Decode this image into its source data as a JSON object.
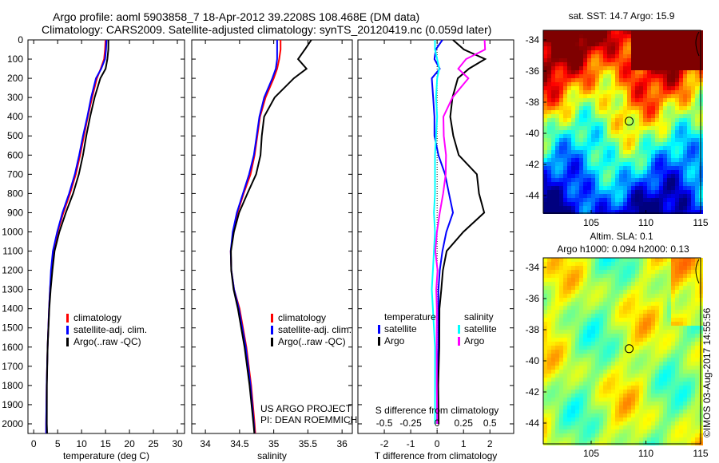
{
  "title_line1": "Argo profile: aoml 5903858_7 18-Apr-2012 39.2208S 108.468E (DM data)",
  "title_line2": "Climatology: CARS2009. Satellite-adjusted climatology: synTS_20120419.nc (0.059d later)",
  "colors": {
    "climatology": "#ff0000",
    "satellite": "#0000ff",
    "argo": "#000000",
    "sal_satellite": "#00ffff",
    "sal_argo": "#ff00ff"
  },
  "chart_data": [
    {
      "type": "line",
      "xlabel": "temperature (deg C)",
      "ylabel": "",
      "xlim": [
        -1.2,
        31.5
      ],
      "ylim": [
        2050,
        0
      ],
      "xticks": [
        "0",
        "5",
        "10",
        "15",
        "20",
        "25",
        "30"
      ],
      "yticks": [
        "0",
        "100",
        "200",
        "300",
        "400",
        "500",
        "600",
        "700",
        "800",
        "900",
        "1000",
        "1100",
        "1200",
        "1300",
        "1400",
        "1500",
        "1600",
        "1700",
        "1800",
        "1900",
        "2000"
      ],
      "legend": [
        "climatology",
        "satellite-adj. clim.",
        "Argo(..raw -QC)"
      ],
      "depth": [
        0,
        50,
        100,
        150,
        200,
        300,
        400,
        500,
        600,
        700,
        800,
        900,
        1000,
        1100,
        1200,
        1300,
        1400,
        1600,
        1800,
        2000,
        2050
      ],
      "series": [
        {
          "name": "climatology",
          "values": [
            15.0,
            14.9,
            14.7,
            14.0,
            13.2,
            12.2,
            11.3,
            10.5,
            9.7,
            8.8,
            7.6,
            6.2,
            5.0,
            4.1,
            3.7,
            3.4,
            3.2,
            2.9,
            2.7,
            2.6,
            2.6
          ]
        },
        {
          "name": "satellite-adj. clim.",
          "values": [
            15.2,
            15.1,
            14.9,
            14.1,
            13.0,
            12.0,
            11.2,
            10.3,
            9.5,
            8.6,
            7.4,
            6.0,
            4.9,
            4.0,
            3.6,
            3.4,
            3.2,
            2.9,
            2.7,
            2.6,
            2.6
          ]
        },
        {
          "name": "Argo(..raw -QC)",
          "values": [
            15.6,
            15.5,
            15.3,
            15.0,
            14.0,
            12.8,
            11.8,
            10.9,
            10.2,
            9.4,
            8.3,
            6.8,
            5.4,
            4.3,
            3.8,
            3.5,
            3.3,
            3.0,
            2.8,
            2.7,
            2.7
          ]
        }
      ]
    },
    {
      "type": "line",
      "xlabel": "salinity",
      "xlim": [
        33.8,
        36.15
      ],
      "ylim": [
        2050,
        0
      ],
      "xticks": [
        "34",
        "34.5",
        "35",
        "35.5",
        "36"
      ],
      "legend": [
        "climatology",
        "satellite-adj. clim.",
        "Argo(..raw -QC)"
      ],
      "annotation": [
        "US ARGO PROJECT",
        "PI: DEAN ROEMMICH"
      ],
      "depth": [
        0,
        50,
        100,
        150,
        200,
        300,
        400,
        500,
        600,
        700,
        800,
        900,
        1000,
        1100,
        1200,
        1300,
        1400,
        1600,
        1800,
        2000,
        2050
      ],
      "series": [
        {
          "name": "climatology",
          "values": [
            35.1,
            35.1,
            35.08,
            35.05,
            35.0,
            34.88,
            34.8,
            34.76,
            34.72,
            34.66,
            34.56,
            34.47,
            34.41,
            34.37,
            34.38,
            34.42,
            34.5,
            34.6,
            34.67,
            34.72,
            34.73
          ]
        },
        {
          "name": "satellite-adj. clim.",
          "values": [
            35.05,
            35.05,
            35.05,
            35.03,
            34.98,
            34.86,
            34.79,
            34.75,
            34.71,
            34.64,
            34.55,
            34.46,
            34.4,
            34.37,
            34.38,
            34.42,
            34.49,
            34.59,
            34.66,
            34.71,
            34.72
          ]
        },
        {
          "name": "Argo(..raw -QC)",
          "values": [
            35.55,
            35.45,
            35.35,
            35.48,
            35.3,
            35.02,
            34.86,
            34.82,
            34.8,
            34.74,
            34.62,
            34.5,
            34.42,
            34.37,
            34.37,
            34.41,
            34.48,
            34.58,
            34.65,
            34.7,
            34.71
          ]
        }
      ]
    },
    {
      "type": "line",
      "xlabel": "T difference from climatology",
      "xlabel_top": "S difference from climatology",
      "xlim": [
        -3,
        2.9
      ],
      "ylim": [
        2050,
        0
      ],
      "xticks": [
        "-2",
        "-1",
        "0",
        "1",
        "2"
      ],
      "xticks_top": [
        "-0.5",
        "-0.25",
        "0",
        "0.25",
        "0.5"
      ],
      "legend_temperature": {
        "title": "temperature",
        "items": [
          "satellite",
          "Argo"
        ]
      },
      "legend_salinity": {
        "title": "salinity",
        "items": [
          "satellite",
          "Argo"
        ]
      },
      "depth": [
        0,
        50,
        100,
        150,
        200,
        300,
        400,
        500,
        600,
        700,
        800,
        900,
        1000,
        1100,
        1200,
        1300,
        1400,
        1600,
        1800,
        2000
      ],
      "series": [
        {
          "name": "temperature satellite",
          "values": [
            0.2,
            -0.05,
            -0.1,
            0.1,
            -0.2,
            -0.15,
            -0.1,
            -0.1,
            0.05,
            0.3,
            0.45,
            0.6,
            0.35,
            0.2,
            0.1,
            0.05,
            0.05,
            0.05,
            0.0,
            0.0
          ]
        },
        {
          "name": "temperature Argo",
          "values": [
            0.6,
            1.0,
            1.8,
            1.2,
            0.8,
            0.6,
            0.5,
            0.6,
            0.8,
            1.5,
            1.6,
            1.8,
            1.0,
            0.35,
            0.2,
            0.15,
            0.1,
            0.1,
            0.05,
            0.05
          ]
        },
        {
          "name": "salinity satellite",
          "values": [
            -0.02,
            -0.02,
            0.0,
            0.02,
            0.0,
            -0.01,
            0.0,
            -0.01,
            -0.02,
            -0.02,
            -0.02,
            -0.03,
            -0.02,
            -0.03,
            -0.04,
            -0.05,
            -0.04,
            -0.02,
            -0.02,
            -0.02
          ]
        },
        {
          "name": "salinity Argo",
          "values": [
            0.45,
            0.45,
            0.27,
            0.2,
            0.3,
            0.15,
            0.06,
            0.06,
            0.08,
            0.08,
            0.06,
            0.03,
            0.0,
            -0.02,
            0.0,
            -0.01,
            0.0,
            0.0,
            0.0,
            0.0
          ]
        }
      ]
    }
  ],
  "maps": [
    {
      "title": "sat. SST: 14.7 Argo: 15.9",
      "xticks": [
        "105",
        "110",
        "115"
      ],
      "yticks": [
        "-34",
        "-36",
        "-38",
        "-40",
        "-42",
        "-44"
      ],
      "argo_lon": 108.468,
      "argo_lat": -39.2208
    },
    {
      "title1": "Altim. SLA: 0.1",
      "title2": "Argo h1000: 0.094 h2000: 0.13",
      "xticks": [
        "105",
        "110",
        "115"
      ],
      "yticks": [
        "-34",
        "-36",
        "-38",
        "-40",
        "-42",
        "-44"
      ],
      "argo_lon": 108.468,
      "argo_lat": -39.2208
    }
  ],
  "credit": "©IMOS 03-Aug-2017 14:55:56"
}
